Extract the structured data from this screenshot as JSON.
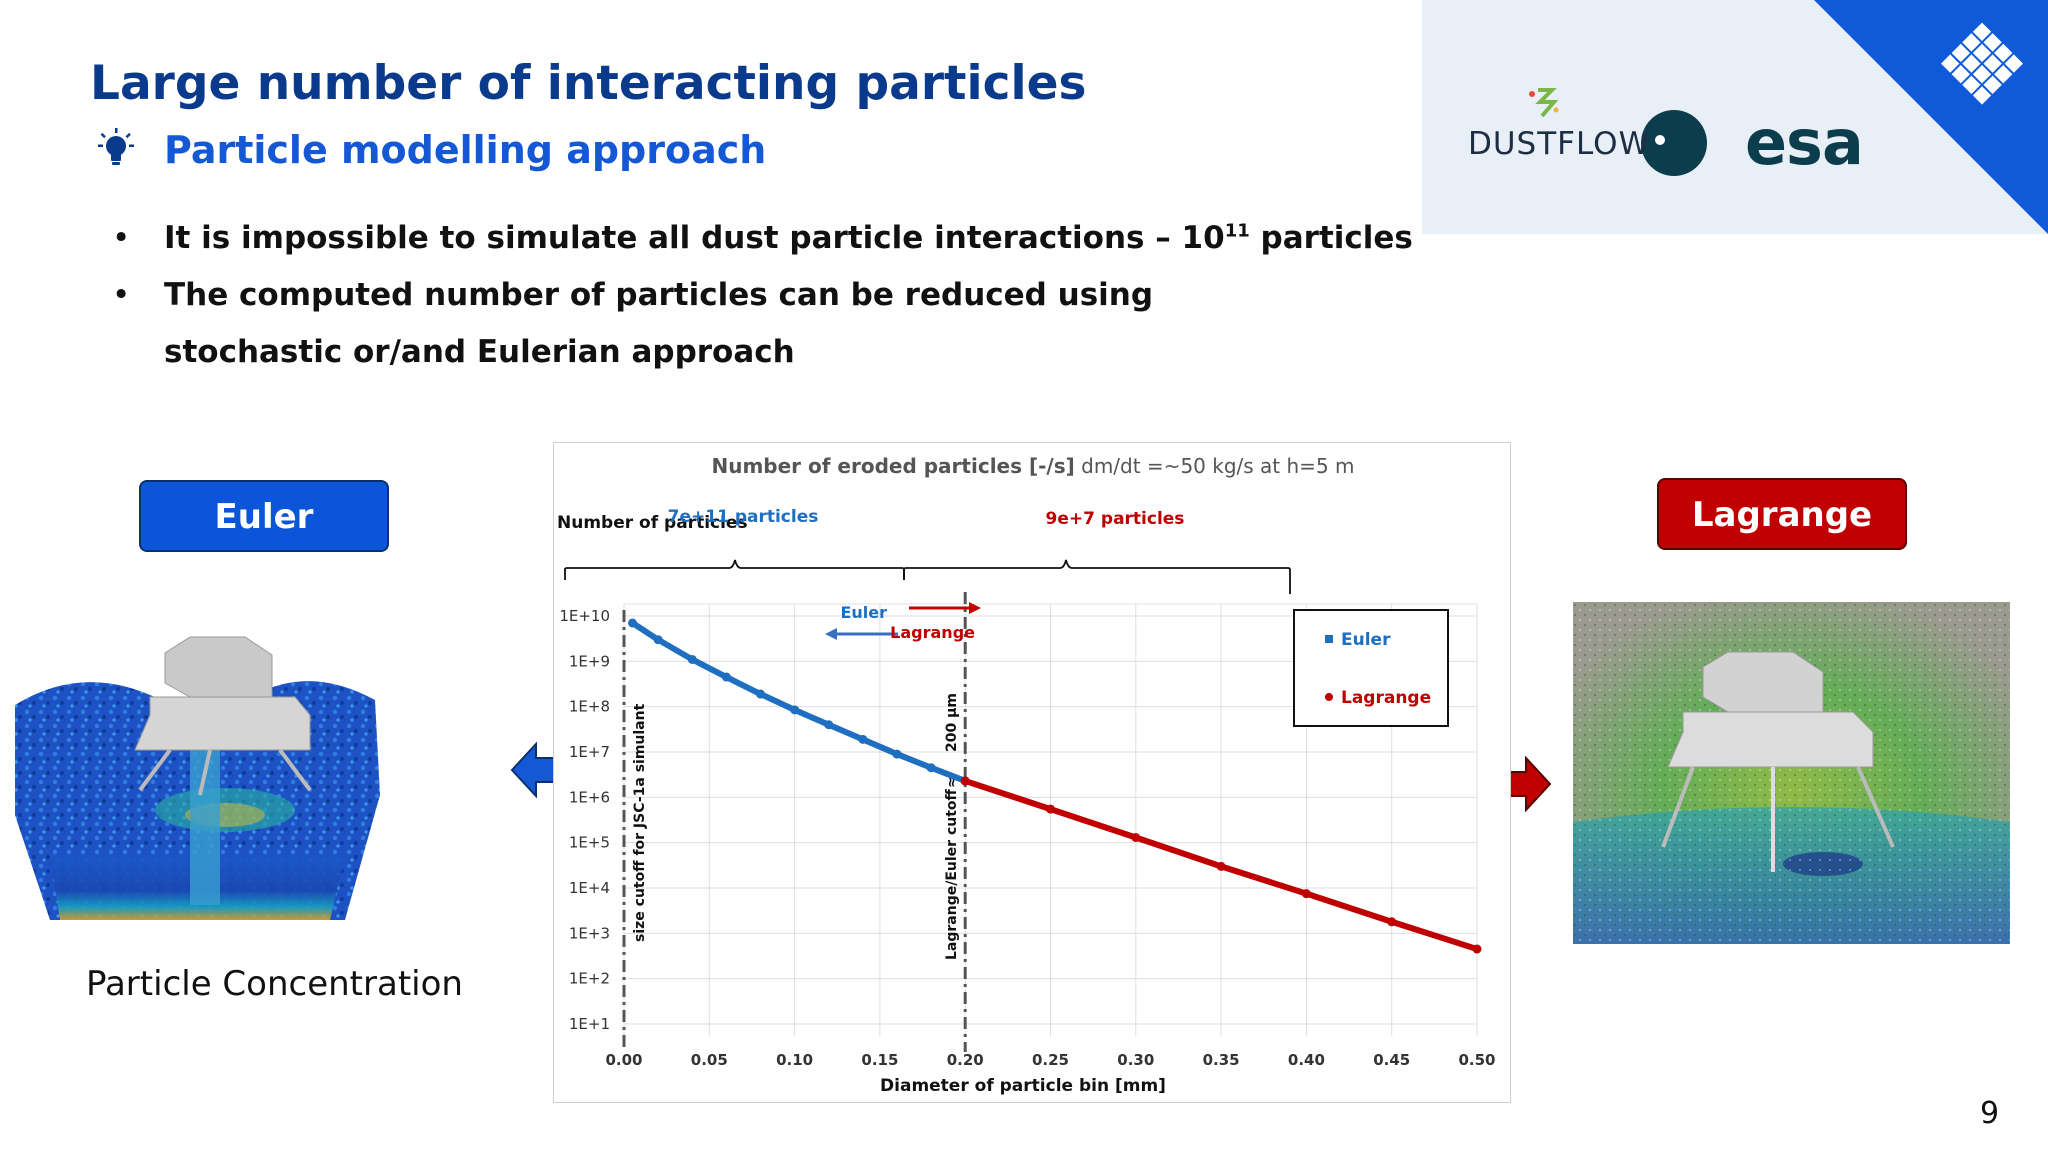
{
  "slide": {
    "title": "Large number of interacting particles",
    "subtitle": "Particle modelling approach",
    "bullets": [
      {
        "text_before": "It is impossible to simulate all dust particle interactions – 10",
        "superscript": "11",
        "text_after": " particles"
      },
      {
        "text": "The computed number of particles can be reduced using"
      },
      {
        "text": "stochastic or/and Eulerian approach"
      }
    ],
    "euler_button": "Euler",
    "lagrange_button": "Lagrange",
    "left_caption": "Particle Concentration",
    "page_number": "9",
    "icons": [
      "lightbulb-icon",
      "double-arrow-blue-icon",
      "double-arrow-red-icon",
      "esa-logo",
      "dustflow-logo"
    ]
  },
  "logos": {
    "dustflow": "DUSTFLOW",
    "esa": "esa"
  },
  "colors": {
    "title": "#0a3a8c",
    "subtitle": "#1558d6",
    "euler": "#0b56d8",
    "lagrange": "#c00000",
    "euler_series": "#1f6fc1",
    "lagrange_series": "#c00000"
  },
  "chart_data": {
    "type": "scatter",
    "title_bold": "Number of eroded particles [-/s]",
    "title_rest": " dm/dt =~50 kg/s at h=5 m",
    "ylabel": "Number of particles",
    "xlabel": "Diameter of particle bin [mm]",
    "y_scale": "log",
    "xlim": [
      0,
      0.5
    ],
    "ylim": [
      10,
      10000000000
    ],
    "x_ticks": [
      "0.00",
      "0.05",
      "0.10",
      "0.15",
      "0.20",
      "0.25",
      "0.30",
      "0.35",
      "0.40",
      "0.45",
      "0.50"
    ],
    "y_ticks": [
      "1E+1",
      "1E+2",
      "1E+3",
      "1E+4",
      "1E+5",
      "1E+6",
      "1E+7",
      "1E+8",
      "1E+9",
      "1E+10"
    ],
    "grid": true,
    "legend": {
      "placement": "top-right",
      "entries": [
        "Euler",
        "Lagrange"
      ]
    },
    "series": [
      {
        "name": "Euler",
        "color": "#1f6fc1",
        "x": [
          0.005,
          0.02,
          0.04,
          0.06,
          0.08,
          0.1,
          0.12,
          0.14,
          0.16,
          0.18,
          0.2
        ],
        "y": [
          7000000000,
          3000000000,
          1100000000,
          450000000,
          190000000,
          85000000,
          40000000,
          19000000,
          9000000,
          4500000,
          2300000
        ]
      },
      {
        "name": "Lagrange",
        "color": "#c00000",
        "x": [
          0.2,
          0.25,
          0.3,
          0.35,
          0.4,
          0.45,
          0.5
        ],
        "y": [
          2300000,
          550000,
          130000,
          30000,
          7500,
          1800,
          450
        ]
      }
    ],
    "annotations": {
      "euler_count": "7e+11 particles",
      "lagrange_count": "9e+7 particles",
      "euler_arrow": "Euler",
      "lagrange_arrow": "Lagrange",
      "size_cutoff": "size cutoff for JSC-1a simulant",
      "le_cutoff": "Lagrange/Euler cutoff",
      "le_cutoff_value": "200 µm",
      "le_cutoff_sep": "≈",
      "size_cutoff_x": 0.0,
      "le_cutoff_x": 0.2
    }
  }
}
